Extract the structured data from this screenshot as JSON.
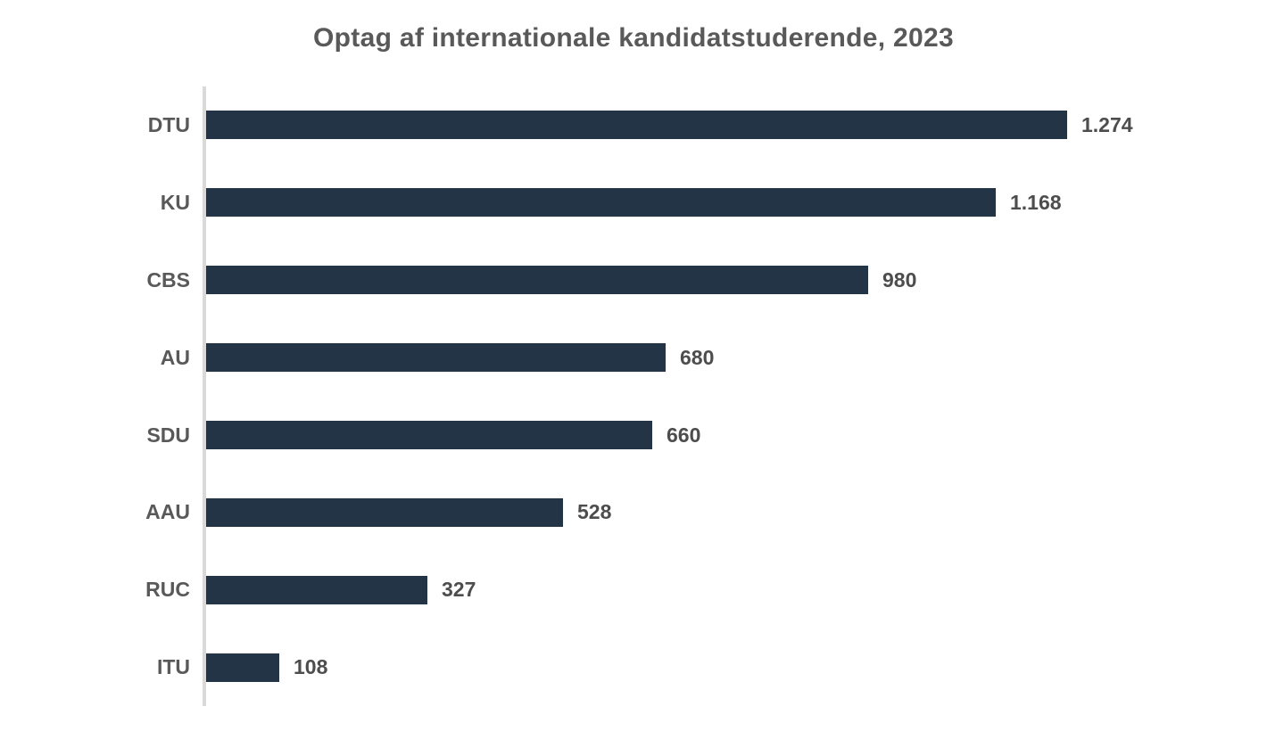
{
  "chart_data": {
    "type": "bar",
    "orientation": "horizontal",
    "title": "Optag af internationale kandidatstuderende, 2023",
    "categories": [
      "DTU",
      "KU",
      "CBS",
      "AU",
      "SDU",
      "AAU",
      "RUC",
      "ITU"
    ],
    "values": [
      1274,
      1168,
      980,
      680,
      660,
      528,
      327,
      108
    ],
    "value_labels": [
      "1.274",
      "1.168",
      "980",
      "680",
      "660",
      "528",
      "327",
      "108"
    ],
    "xlabel": "",
    "ylabel": "",
    "xlim": [
      0,
      1274
    ],
    "grid": false,
    "legend_position": "none",
    "bar_color": "#233447",
    "axis_line_color": "#d9d9d9",
    "category_label_color": "#595959",
    "value_label_color": "#4d4d4d",
    "title_color": "#595959",
    "background_color": "#ffffff"
  }
}
